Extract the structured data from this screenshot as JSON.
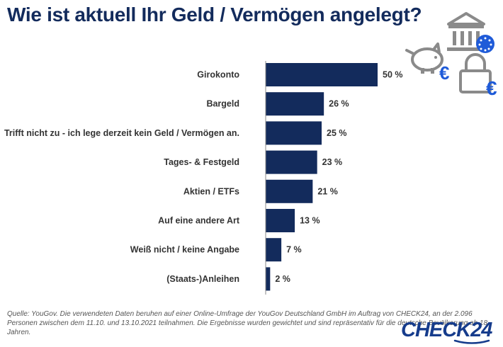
{
  "title": "Wie ist aktuell Ihr Geld / Vermögen angelegt?",
  "chart_data": {
    "type": "bar",
    "orientation": "horizontal",
    "title": "Wie ist aktuell Ihr Geld / Vermögen angelegt?",
    "categories": [
      "Girokonto",
      "Bargeld",
      "Trifft nicht zu - ich lege derzeit kein Geld / Vermögen an.",
      "Tages- & Festgeld",
      "Aktien / ETFs",
      "Auf eine andere Art",
      "Weiß nicht / keine Angabe",
      "(Staats-)Anleihen"
    ],
    "values": [
      50,
      26,
      25,
      23,
      21,
      13,
      7,
      2
    ],
    "value_labels": [
      "50 %",
      "26 %",
      "25 %",
      "23 %",
      "21 %",
      "13 %",
      "7 %",
      "2 %"
    ],
    "unit": "%",
    "xlim": [
      0,
      100
    ],
    "xlabel": "",
    "ylabel": "",
    "grid": false,
    "bar_color": "#132b5c"
  },
  "icons": [
    "bank-euro-icon",
    "piggy-bank-euro-icon",
    "padlock-euro-icon"
  ],
  "source": "Quelle: YouGov. Die verwendeten Daten beruhen auf einer Online-Umfrage der YouGov Deutschland GmbH im Auftrag von CHECK24, an der 2.096 Personen zwischen dem 11.10. und 13.10.2021 teilnahmen. Die Ergebnisse wurden gewichtet und sind repräsentativ für die deutsche Bevölkerung ab 18 Jahren.",
  "logo": "CHECK24",
  "colors": {
    "title": "#132b5c",
    "bar": "#132b5c",
    "logo": "#163c8c",
    "icon_gray": "#8a8a8a",
    "icon_blue": "#1f5bd8"
  }
}
